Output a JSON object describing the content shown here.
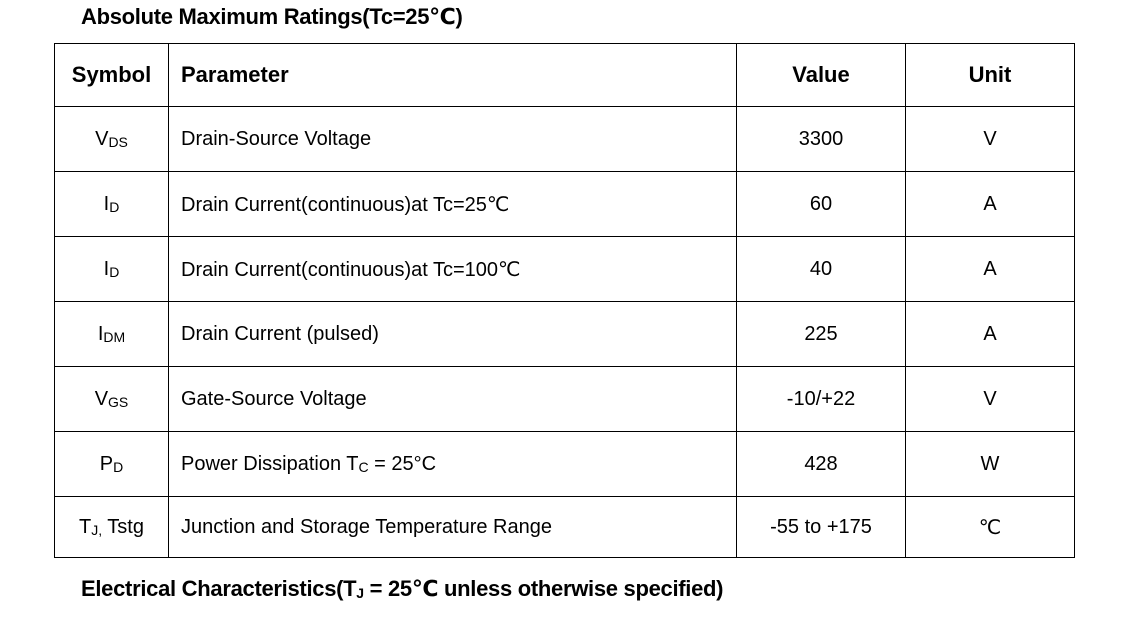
{
  "headings": {
    "absolute_max": "Absolute Maximum Ratings(Tc=25℃)",
    "electrical_prefix": "Electrical Characteristics(T",
    "electrical_sub": "J",
    "electrical_suffix": " = 25℃  unless otherwise specified)"
  },
  "table": {
    "columns": [
      "Symbol",
      "Parameter",
      "Value",
      "Unit"
    ],
    "rows": [
      {
        "symbol_main": "V",
        "symbol_sub": "DS",
        "symbol_tail": "",
        "parameter": "Drain-Source Voltage",
        "param_sub": "",
        "param_tail": "",
        "value": "3300",
        "unit": "V"
      },
      {
        "symbol_main": "I",
        "symbol_sub": "D",
        "symbol_tail": "",
        "parameter": "Drain Current(continuous)at Tc=25℃",
        "param_sub": "",
        "param_tail": "",
        "value": "60",
        "unit": "A"
      },
      {
        "symbol_main": "I",
        "symbol_sub": "D",
        "symbol_tail": "",
        "parameter": "Drain Current(continuous)at Tc=100℃",
        "param_sub": "",
        "param_tail": "",
        "value": "40",
        "unit": "A"
      },
      {
        "symbol_main": "I",
        "symbol_sub": "DM",
        "symbol_tail": "",
        "parameter": "Drain Current (pulsed)",
        "param_sub": "",
        "param_tail": "",
        "value": "225",
        "unit": "A"
      },
      {
        "symbol_main": "V",
        "symbol_sub": "GS",
        "symbol_tail": "",
        "parameter": "Gate-Source Voltage",
        "param_sub": "",
        "param_tail": "",
        "value": "-10/+22",
        "unit": "V"
      },
      {
        "symbol_main": "P",
        "symbol_sub": "D",
        "symbol_tail": "",
        "parameter": "Power Dissipation T",
        "param_sub": "C",
        "param_tail": " = 25°C",
        "value": "428",
        "unit": "W"
      },
      {
        "symbol_main": "T",
        "symbol_sub": "J,",
        "symbol_tail": " Tstg",
        "parameter": "Junction and Storage Temperature Range",
        "param_sub": "",
        "param_tail": "",
        "value": "-55 to +175",
        "unit": "℃"
      }
    ]
  }
}
